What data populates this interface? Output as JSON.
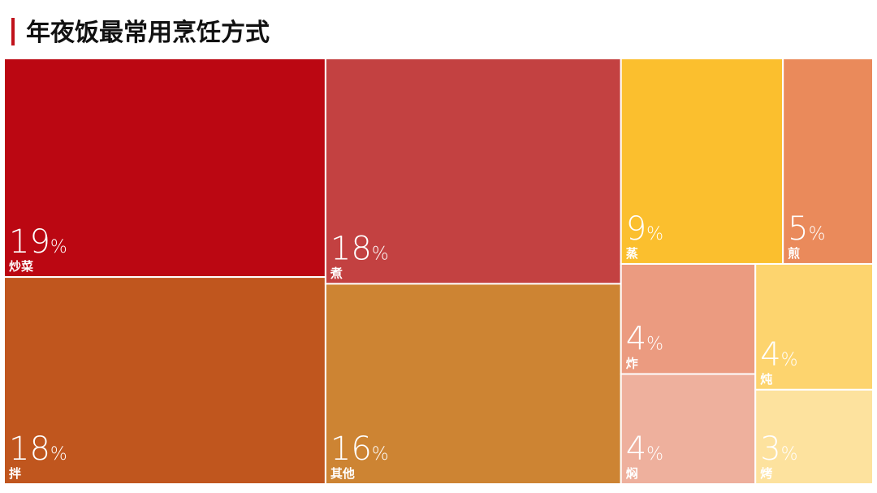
{
  "chart_data": {
    "type": "treemap",
    "title": "年夜饭最常用烹饪方式",
    "categories": [
      "炒菜",
      "拌",
      "煮",
      "其他",
      "蒸",
      "煎",
      "炸",
      "焖",
      "炖",
      "烤"
    ],
    "values": [
      19,
      18,
      18,
      16,
      9,
      5,
      4,
      4,
      4,
      3
    ],
    "value_labels": [
      "19%",
      "18%",
      "18%",
      "16%",
      "9%",
      "5%",
      "4%",
      "4%",
      "4%",
      "3%"
    ],
    "colors": [
      "#bb0712",
      "#c0561e",
      "#c34141",
      "#cd8433",
      "#fbbf2e",
      "#ea8a5b",
      "#eb9b80",
      "#eeb09d",
      "#fdd46e",
      "#fde29e"
    ]
  }
}
